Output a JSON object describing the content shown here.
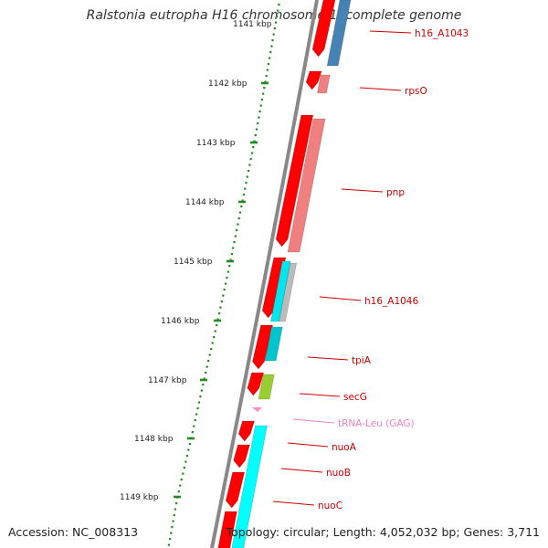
{
  "title": "Ralstonia eutropha H16 chromosome 1, complete genome",
  "footer": {
    "accession": "Accession: NC_008313",
    "summary": "Topology: circular; Length: 4,052,032 bp; Genes: 3,711"
  },
  "ruler": {
    "top_partial_label": "1141 kbp",
    "labels": [
      "1142 kbp",
      "1143 kbp",
      "1144 kbp",
      "1145 kbp",
      "1146 kbp",
      "1147 kbp",
      "1148 kbp",
      "1149 kbp"
    ]
  },
  "colors": {
    "strand_forward": "#ff0000",
    "backbone": "#888888",
    "ruler_ticks": "#228b22",
    "label_red": "#cc0000",
    "label_trna": "#ee82c0",
    "rpsO": "#f08080",
    "pnp": "#f08080",
    "h16_A1043": "#4682b4",
    "h16_A1046": "#00e5ee",
    "tpiA": "#00c5cd",
    "secG": "#9acd32",
    "trna": "#ff8cc6",
    "nuo": "#00ffff",
    "grey_feature": "#bbbbbb"
  },
  "gene_labels": [
    {
      "id": "h16_A1043",
      "text": "h16_A1043",
      "color": "#cc0000"
    },
    {
      "id": "rpsO",
      "text": "rpsO",
      "color": "#cc0000"
    },
    {
      "id": "pnp",
      "text": "pnp",
      "color": "#cc0000"
    },
    {
      "id": "h16_A1046",
      "text": "h16_A1046",
      "color": "#cc0000"
    },
    {
      "id": "tpiA",
      "text": "tpiA",
      "color": "#cc0000"
    },
    {
      "id": "secG",
      "text": "secG",
      "color": "#cc0000"
    },
    {
      "id": "trnaLeu",
      "text": "tRNA-Leu (GAG)",
      "color": "#ee82c0"
    },
    {
      "id": "nuoA",
      "text": "nuoA",
      "color": "#cc0000"
    },
    {
      "id": "nuoB",
      "text": "nuoB",
      "color": "#cc0000"
    },
    {
      "id": "nuoC",
      "text": "nuoC",
      "color": "#cc0000"
    }
  ]
}
